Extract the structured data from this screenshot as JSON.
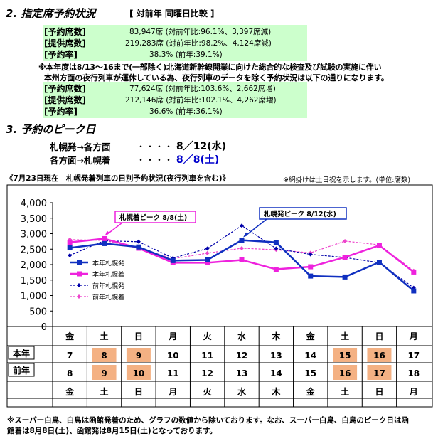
{
  "section2": {
    "title": "2. 指定席予約状況",
    "compare": "[ 対前年 同曜日比較 ]",
    "block1": [
      {
        "label": "[予約席数]",
        "value": "83,947席 (対前年比:96.1%、3,397席減)"
      },
      {
        "label": "[提供席数]",
        "value": "219,283席 (対前年比:98.2%、4,124席減)"
      },
      {
        "label": "[予約率]",
        "value": "38.3% (前年:39.1%)"
      }
    ],
    "note_line1": "※本年度は8/13～16まで(一部除く)北海道新幹線開業に向けた総合的な検査及び試験の実施に伴い",
    "note_line2": "本州方面の夜行列車が運休している為、夜行列車のデータを除く予約状況は以下の通りになります。",
    "block2": [
      {
        "label": "[予約席数]",
        "value": "77,624席 (対前年比:103.6%、2,662席増)"
      },
      {
        "label": "[提供席数]",
        "value": "212,146席 (対前年比:102.1%、4,262席増)"
      },
      {
        "label": "[予約率]",
        "value": "36.6% (前年:36.1%)"
      }
    ]
  },
  "section3": {
    "title": "3. 予約のピーク日",
    "rows": [
      {
        "route": "札幌発→各方面",
        "dots": "・・・・・",
        "date": "8／12(水)",
        "color": "#000000"
      },
      {
        "route": "各方面→札幌着",
        "dots": "・・・・・",
        "date": "8／8(土)",
        "color": "#0000cc"
      }
    ]
  },
  "chart_title": "《7月23日現在　札幌発着列車の日別予約状況(夜行列車を含む)》",
  "chart_note": "※網掛けは土日祝を示します。(単位:席数)",
  "chart_data": {
    "type": "line",
    "ylim": [
      0,
      4000
    ],
    "yticks": [
      "0",
      "500",
      "1,000",
      "1,500",
      "2,000",
      "2,500",
      "3,000",
      "3,500",
      "4,000"
    ],
    "categories": [
      "金",
      "土",
      "日",
      "月",
      "火",
      "水",
      "木",
      "金",
      "土",
      "日",
      "月"
    ],
    "series": [
      {
        "name": "本年札幌発",
        "color": "#1030c0",
        "style": "solid",
        "marker": "square",
        "values": [
          2540,
          2680,
          2570,
          2130,
          2150,
          2790,
          2720,
          1630,
          1600,
          2080,
          1150
        ]
      },
      {
        "name": "本年札幌着",
        "color": "#ee22dd",
        "style": "solid",
        "marker": "square",
        "values": [
          2720,
          2840,
          2530,
          2060,
          2060,
          2150,
          1850,
          1930,
          2240,
          2620,
          1760
        ]
      },
      {
        "name": "前年札幌発",
        "color": "#0000aa",
        "style": "dashed",
        "marker": "diamond",
        "values": [
          2300,
          2770,
          2740,
          2210,
          2520,
          3260,
          2520,
          2330,
          2230,
          2060,
          1250
        ]
      },
      {
        "name": "前年札幌着",
        "color": "#ee44cc",
        "style": "dashed",
        "marker": "diamond",
        "values": [
          2810,
          2780,
          2540,
          2190,
          2370,
          2530,
          2480,
          2380,
          2760,
          2640,
          1800
        ]
      }
    ],
    "annotations": [
      {
        "text": "札幌着ピーク 8/8(土)",
        "category_index": 1,
        "series": "本年札幌着"
      },
      {
        "text": "札幌発ピーク 8/12(水)",
        "category_index": 5,
        "series": "本年札幌発"
      }
    ]
  },
  "table": {
    "weekday_top": [
      "金",
      "土",
      "日",
      "月",
      "火",
      "水",
      "木",
      "金",
      "土",
      "日",
      "月"
    ],
    "row_this_year_label": "本年",
    "row_this_year": [
      "7",
      "8",
      "9",
      "10",
      "11",
      "12",
      "13",
      "14",
      "15",
      "16",
      "17"
    ],
    "row_this_year_shaded": [
      false,
      true,
      true,
      false,
      false,
      false,
      false,
      false,
      true,
      true,
      false
    ],
    "row_last_year_label": "前年",
    "row_last_year": [
      "8",
      "9",
      "10",
      "11",
      "12",
      "13",
      "14",
      "15",
      "16",
      "17",
      "18"
    ],
    "row_last_year_shaded": [
      false,
      true,
      true,
      false,
      false,
      false,
      false,
      false,
      true,
      true,
      false
    ],
    "weekday_bottom": [
      "金",
      "土",
      "日",
      "月",
      "火",
      "水",
      "木",
      "金",
      "土",
      "日",
      "月"
    ],
    "shade_color": "#f4b183"
  },
  "footnote_line1": "※スーパー白鳥、白鳥は函館発着のため、グラフの数値から除いております。なお、スーパー白鳥、白鳥のピーク日は函",
  "footnote_line2": "館着は8月8日(土)、函館発は8月15日(土)となっております。"
}
